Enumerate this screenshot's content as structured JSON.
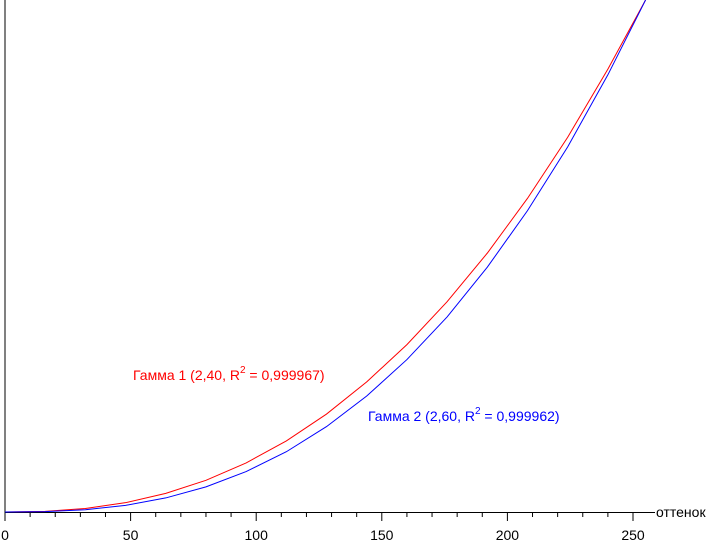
{
  "chart_data": {
    "type": "line",
    "x_label": "оттенок",
    "x": [
      0,
      16,
      32,
      48,
      64,
      80,
      96,
      112,
      128,
      144,
      160,
      176,
      192,
      208,
      224,
      240,
      255
    ],
    "series": [
      {
        "label": {
          "text": "Гамма 1 (2,40, R",
          "sup": "2",
          "tail": " = 0,999967)"
        },
        "color": "#ff0000",
        "values": [
          0,
          0.0013,
          0.0069,
          0.0182,
          0.0363,
          0.0619,
          0.0959,
          0.1388,
          0.1913,
          0.2541,
          0.3269,
          0.4107,
          0.5056,
          0.6126,
          0.732,
          0.865,
          1
        ]
      },
      {
        "label": {
          "text": "Гамма 2 (2,60, R",
          "sup": "2",
          "tail": " = 0,999962)"
        },
        "color": "#0000ff",
        "values": [
          0,
          0.0007,
          0.0045,
          0.013,
          0.0275,
          0.0491,
          0.0789,
          0.1177,
          0.1668,
          0.2265,
          0.2977,
          0.381,
          0.4781,
          0.5886,
          0.7132,
          0.8539,
          1
        ]
      }
    ],
    "xlim": [
      0,
      255
    ],
    "ylim": [
      0,
      1
    ],
    "xticks": [
      0,
      50,
      100,
      150,
      200,
      250
    ],
    "xminorticks": [
      10,
      20,
      30,
      40,
      60,
      70,
      80,
      90,
      110,
      120,
      130,
      140,
      160,
      170,
      180,
      190,
      210,
      220,
      230,
      240
    ]
  }
}
